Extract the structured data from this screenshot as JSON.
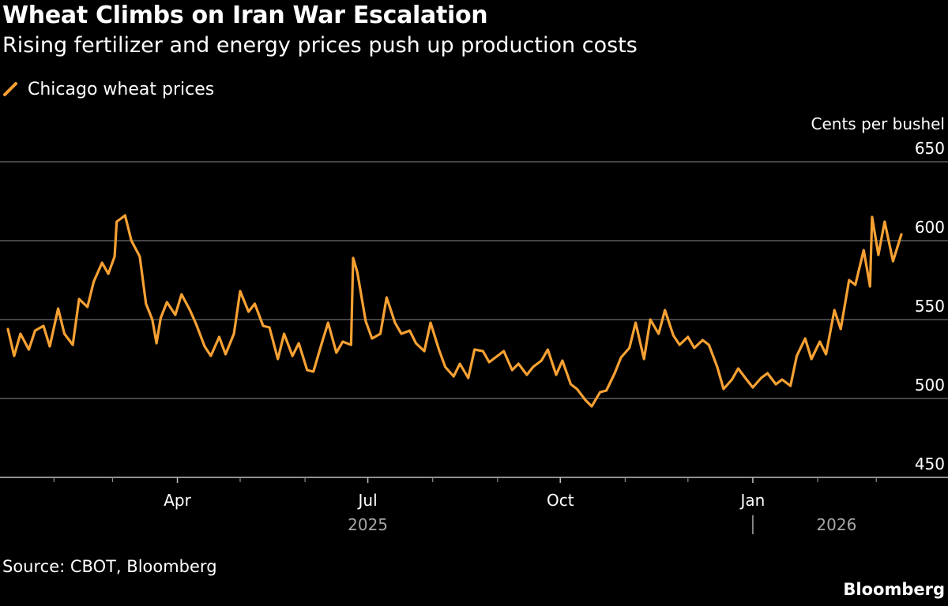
{
  "title": "Wheat Climbs on Iran War Escalation",
  "subtitle": "Rising fertilizer and energy prices push up production costs",
  "legend": {
    "label": "Chicago wheat prices",
    "color": "#f7a133"
  },
  "source": "Source: CBOT, Bloomberg",
  "brand": "Bloomberg",
  "colors": {
    "background": "#000000",
    "line": "#f7a133",
    "grid": "#5a5a5a",
    "text": "#ffffff",
    "year_text": "#a6a6a6"
  },
  "chart_data": {
    "type": "line",
    "ylabel": "Cents per bushel",
    "ylim": [
      450,
      650
    ],
    "yticks": [
      450,
      500,
      550,
      600,
      650
    ],
    "x_range": [
      "2025-01-10",
      "2026-03-13"
    ],
    "x_month_labels": [
      {
        "label": "Apr",
        "date": "2025-04-01"
      },
      {
        "label": "Jul",
        "date": "2025-07-01"
      },
      {
        "label": "Oct",
        "date": "2025-10-01"
      },
      {
        "label": "Jan",
        "date": "2026-01-01"
      }
    ],
    "x_minor_ticks": [
      "2025-02-01",
      "2025-03-01",
      "2025-05-01",
      "2025-06-01",
      "2025-08-01",
      "2025-09-01",
      "2025-11-01",
      "2025-12-01",
      "2026-02-01",
      "2026-03-01"
    ],
    "year_labels": [
      {
        "label": "2025",
        "date": "2025-07-01"
      },
      {
        "label": "2026",
        "date": "2026-02-10"
      }
    ],
    "year_divider_date": "2026-01-01",
    "grid": true,
    "series": [
      {
        "name": "Chicago wheat prices",
        "points": [
          [
            "2025-01-10",
            544
          ],
          [
            "2025-01-13",
            527
          ],
          [
            "2025-01-16",
            541
          ],
          [
            "2025-01-20",
            531
          ],
          [
            "2025-01-23",
            543
          ],
          [
            "2025-01-27",
            546
          ],
          [
            "2025-01-30",
            533
          ],
          [
            "2025-02-03",
            557
          ],
          [
            "2025-02-06",
            541
          ],
          [
            "2025-02-10",
            534
          ],
          [
            "2025-02-13",
            563
          ],
          [
            "2025-02-17",
            558
          ],
          [
            "2025-02-20",
            574
          ],
          [
            "2025-02-24",
            586
          ],
          [
            "2025-02-27",
            579
          ],
          [
            "2025-03-02",
            590
          ],
          [
            "2025-03-03",
            612
          ],
          [
            "2025-03-07",
            616
          ],
          [
            "2025-03-10",
            600
          ],
          [
            "2025-03-14",
            590
          ],
          [
            "2025-03-17",
            560
          ],
          [
            "2025-03-20",
            550
          ],
          [
            "2025-03-22",
            535
          ],
          [
            "2025-03-24",
            551
          ],
          [
            "2025-03-27",
            561
          ],
          [
            "2025-03-31",
            553
          ],
          [
            "2025-04-03",
            566
          ],
          [
            "2025-04-07",
            556
          ],
          [
            "2025-04-10",
            547
          ],
          [
            "2025-04-14",
            533
          ],
          [
            "2025-04-17",
            527
          ],
          [
            "2025-04-21",
            539
          ],
          [
            "2025-04-24",
            528
          ],
          [
            "2025-04-28",
            541
          ],
          [
            "2025-05-01",
            568
          ],
          [
            "2025-05-05",
            555
          ],
          [
            "2025-05-08",
            560
          ],
          [
            "2025-05-12",
            546
          ],
          [
            "2025-05-15",
            545
          ],
          [
            "2025-05-19",
            525
          ],
          [
            "2025-05-22",
            541
          ],
          [
            "2025-05-26",
            527
          ],
          [
            "2025-05-29",
            535
          ],
          [
            "2025-06-02",
            518
          ],
          [
            "2025-06-05",
            517
          ],
          [
            "2025-06-09",
            535
          ],
          [
            "2025-06-12",
            548
          ],
          [
            "2025-06-16",
            529
          ],
          [
            "2025-06-19",
            536
          ],
          [
            "2025-06-23",
            534
          ],
          [
            "2025-06-24",
            589
          ],
          [
            "2025-06-26",
            580
          ],
          [
            "2025-06-30",
            549
          ],
          [
            "2025-07-03",
            538
          ],
          [
            "2025-07-07",
            541
          ],
          [
            "2025-07-10",
            564
          ],
          [
            "2025-07-14",
            548
          ],
          [
            "2025-07-17",
            541
          ],
          [
            "2025-07-21",
            543
          ],
          [
            "2025-07-24",
            535
          ],
          [
            "2025-07-28",
            530
          ],
          [
            "2025-07-31",
            548
          ],
          [
            "2025-08-04",
            531
          ],
          [
            "2025-08-07",
            520
          ],
          [
            "2025-08-11",
            514
          ],
          [
            "2025-08-14",
            522
          ],
          [
            "2025-08-18",
            513
          ],
          [
            "2025-08-21",
            531
          ],
          [
            "2025-08-25",
            530
          ],
          [
            "2025-08-28",
            523
          ],
          [
            "2025-09-01",
            527
          ],
          [
            "2025-09-04",
            530
          ],
          [
            "2025-09-08",
            518
          ],
          [
            "2025-09-11",
            522
          ],
          [
            "2025-09-15",
            515
          ],
          [
            "2025-09-18",
            520
          ],
          [
            "2025-09-22",
            524
          ],
          [
            "2025-09-25",
            531
          ],
          [
            "2025-09-29",
            515
          ],
          [
            "2025-10-02",
            524
          ],
          [
            "2025-10-06",
            509
          ],
          [
            "2025-10-09",
            506
          ],
          [
            "2025-10-13",
            499
          ],
          [
            "2025-10-16",
            495
          ],
          [
            "2025-10-20",
            504
          ],
          [
            "2025-10-23",
            505
          ],
          [
            "2025-10-27",
            516
          ],
          [
            "2025-10-30",
            526
          ],
          [
            "2025-11-03",
            532
          ],
          [
            "2025-11-06",
            548
          ],
          [
            "2025-11-10",
            525
          ],
          [
            "2025-11-13",
            550
          ],
          [
            "2025-11-17",
            541
          ],
          [
            "2025-11-20",
            556
          ],
          [
            "2025-11-24",
            540
          ],
          [
            "2025-11-27",
            534
          ],
          [
            "2025-12-01",
            539
          ],
          [
            "2025-12-04",
            532
          ],
          [
            "2025-12-08",
            537
          ],
          [
            "2025-12-11",
            534
          ],
          [
            "2025-12-15",
            520
          ],
          [
            "2025-12-18",
            506
          ],
          [
            "2025-12-22",
            512
          ],
          [
            "2025-12-25",
            519
          ],
          [
            "2025-12-29",
            512
          ],
          [
            "2026-01-01",
            507
          ],
          [
            "2026-01-05",
            513
          ],
          [
            "2026-01-08",
            516
          ],
          [
            "2026-01-12",
            509
          ],
          [
            "2026-01-15",
            512
          ],
          [
            "2026-01-19",
            508
          ],
          [
            "2026-01-22",
            527
          ],
          [
            "2026-01-26",
            538
          ],
          [
            "2026-01-29",
            525
          ],
          [
            "2026-02-02",
            536
          ],
          [
            "2026-02-05",
            528
          ],
          [
            "2026-02-09",
            556
          ],
          [
            "2026-02-12",
            544
          ],
          [
            "2026-02-16",
            575
          ],
          [
            "2026-02-19",
            572
          ],
          [
            "2026-02-23",
            594
          ],
          [
            "2026-02-26",
            571
          ],
          [
            "2026-02-27",
            615
          ],
          [
            "2026-03-02",
            591
          ],
          [
            "2026-03-05",
            612
          ],
          [
            "2026-03-09",
            587
          ],
          [
            "2026-03-13",
            604
          ]
        ]
      }
    ]
  }
}
